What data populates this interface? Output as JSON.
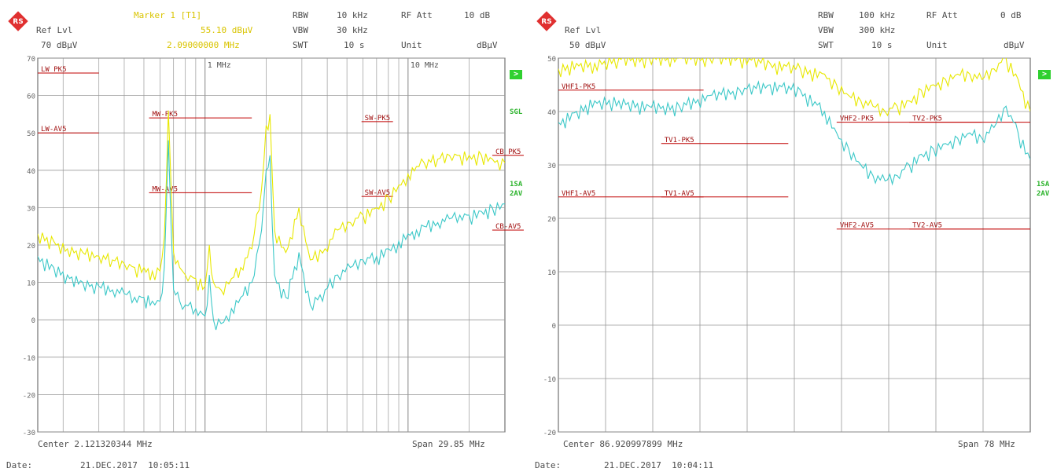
{
  "panels": [
    {
      "header": {
        "ref_lvl_label": "Ref Lvl",
        "ref_lvl_value": "70 dBµV",
        "marker_label": "Marker 1 [T1]",
        "marker_value": "55.10 dBµV",
        "marker_freq": "2.09000000 MHz",
        "rbw_label": "RBW",
        "rbw_value": "10 kHz",
        "vbw_label": "VBW",
        "vbw_value": "30 kHz",
        "swt_label": "SWT",
        "swt_value": "10 s",
        "att_label": "RF Att",
        "att_value": "10 dB",
        "unit_label": "Unit",
        "unit_value": "dBµV"
      },
      "footer": {
        "center": "Center 2.121320344 MHz",
        "span": "Span 29.85 MHz",
        "date_label": "Date:",
        "date_value": "21.DEC.2017  10:05:11"
      },
      "side_labels": [
        "SGL",
        "1SA",
        "2AV"
      ],
      "badge": ">"
    },
    {
      "header": {
        "ref_lvl_label": "Ref Lvl",
        "ref_lvl_value": "50 dBµV",
        "rbw_label": "RBW",
        "rbw_value": "100 kHz",
        "vbw_label": "VBW",
        "vbw_value": "300 kHz",
        "swt_label": "SWT",
        "swt_value": "10 s",
        "att_label": "RF Att",
        "att_value": "0 dB",
        "unit_label": "Unit",
        "unit_value": "dBµV"
      },
      "footer": {
        "center": "Center 86.920997899 MHz",
        "span": "Span 78 MHz",
        "date_label": "Date:",
        "date_value": "21.DEC.2017  10:04:11"
      },
      "side_labels": [
        "1SA",
        "2AV"
      ],
      "badge": ">"
    }
  ],
  "chart_data": [
    {
      "type": "line",
      "x_scale": "log",
      "xlim": [
        0.15,
        30
      ],
      "ylim": [
        -30,
        70
      ],
      "y_ticks": [
        70,
        60,
        50,
        40,
        30,
        20,
        10,
        0,
        -10,
        -20,
        -30
      ],
      "x_tick_labels": [
        "1 MHz",
        "10 MHz"
      ],
      "x_tick_values": [
        1,
        10
      ],
      "grid": true,
      "colors": {
        "peak": "#e8e800",
        "average": "#3cc8c8",
        "limit": "#c00000",
        "grid": "#999999"
      },
      "series": [
        {
          "x": [
            0.15,
            0.18,
            0.21,
            0.25,
            0.3,
            0.35,
            0.4,
            0.45,
            0.5,
            0.55,
            0.6,
            0.63,
            0.66,
            0.7,
            0.75,
            0.8,
            0.9,
            1.0,
            1.05,
            1.1,
            1.2,
            1.35,
            1.5,
            1.7,
            1.9,
            2.0,
            2.09,
            2.2,
            2.5,
            2.9,
            3.3,
            3.9,
            4.5,
            5.2,
            6,
            7,
            8,
            9,
            10,
            11,
            12,
            14,
            16,
            18,
            20,
            23,
            26,
            30
          ],
          "values": [
            23,
            21,
            19,
            18,
            17,
            16,
            15,
            14,
            14,
            13,
            13,
            22,
            56,
            18,
            14,
            12,
            11,
            9,
            20,
            10,
            8,
            11,
            14,
            19,
            35,
            52,
            55,
            24,
            18,
            30,
            16,
            19,
            24,
            26,
            28,
            30,
            33,
            36,
            39,
            41,
            42,
            43,
            44,
            44,
            44,
            44,
            43,
            42
          ]
        },
        {
          "x": [
            0.15,
            0.18,
            0.21,
            0.25,
            0.3,
            0.35,
            0.4,
            0.45,
            0.5,
            0.55,
            0.6,
            0.63,
            0.66,
            0.7,
            0.75,
            0.8,
            0.9,
            1.0,
            1.05,
            1.1,
            1.2,
            1.35,
            1.5,
            1.7,
            1.9,
            2.0,
            2.09,
            2.2,
            2.5,
            2.9,
            3.3,
            3.9,
            4.5,
            5.2,
            6,
            7,
            8,
            9,
            10,
            11,
            12,
            14,
            16,
            18,
            20,
            23,
            26,
            30
          ],
          "values": [
            17,
            14,
            12,
            10,
            9,
            8,
            7,
            6,
            6,
            5,
            5,
            14,
            48,
            8,
            5,
            4,
            3,
            1,
            12,
            0,
            -1,
            3,
            6,
            10,
            24,
            40,
            44,
            12,
            6,
            18,
            4,
            8,
            12,
            14,
            16,
            17,
            19,
            21,
            23,
            24,
            25,
            26,
            27,
            28,
            28,
            29,
            30,
            31
          ]
        }
      ],
      "limit_lines": [
        {
          "label": "LW_PK5",
          "value": 66,
          "x": [
            0.15,
            0.3
          ]
        },
        {
          "label": "LW-AV5",
          "value": 50,
          "x": [
            0.15,
            0.3
          ]
        },
        {
          "label": "MW-PK5",
          "value": 54,
          "x": [
            0.53,
            1.7
          ]
        },
        {
          "label": "MW-AV5",
          "value": 34,
          "x": [
            0.53,
            1.7
          ]
        },
        {
          "label": "SW-PK5",
          "value": 53,
          "x": [
            5.9,
            6.2
          ]
        },
        {
          "label": "SW-AV5",
          "value": 33,
          "x": [
            5.9,
            6.2
          ]
        },
        {
          "label": "CB_PK5",
          "value": 44,
          "x": [
            26,
            28
          ]
        },
        {
          "label": "CB-AV5",
          "value": 24,
          "x": [
            26,
            28
          ]
        }
      ]
    },
    {
      "type": "line",
      "xlim": [
        30,
        108
      ],
      "ylim": [
        -20,
        50
      ],
      "y_ticks": [
        50,
        40,
        30,
        20,
        10,
        0,
        -10,
        -20
      ],
      "grid": true,
      "colors": {
        "peak": "#e8e800",
        "average": "#3cc8c8",
        "limit": "#c00000",
        "grid": "#999999"
      },
      "series": [
        {
          "x": [
            30,
            33,
            36,
            40,
            45,
            50,
            55,
            60,
            65,
            70,
            74,
            76,
            78,
            80,
            82,
            84,
            86,
            88,
            90,
            92,
            94,
            96,
            98,
            100,
            102,
            104,
            106,
            108
          ],
          "values": [
            48,
            49,
            49,
            50,
            50,
            50,
            50,
            50,
            49,
            48,
            47,
            45,
            43,
            42,
            41,
            40,
            41,
            42,
            44,
            45,
            46,
            47,
            47,
            46,
            48,
            50,
            46,
            40
          ]
        },
        {
          "x": [
            30,
            33,
            36,
            40,
            45,
            50,
            55,
            60,
            65,
            70,
            74,
            76,
            78,
            80,
            82,
            84,
            86,
            88,
            90,
            92,
            94,
            96,
            98,
            100,
            102,
            104,
            106,
            108
          ],
          "values": [
            38,
            40,
            42,
            42,
            41,
            41,
            43,
            44,
            45,
            44,
            40,
            36,
            33,
            30,
            28,
            27,
            28,
            30,
            32,
            33,
            34,
            35,
            36,
            35,
            37,
            41,
            36,
            31
          ]
        }
      ],
      "limit_lines": [
        {
          "label": "VHF1-PK5",
          "value": 44,
          "x": [
            30,
            54
          ]
        },
        {
          "label": "VHF1-AV5",
          "value": 24,
          "x": [
            30,
            54
          ]
        },
        {
          "label": "TV1-PK5",
          "value": 34,
          "x": [
            47,
            68
          ]
        },
        {
          "label": "TV1-AV5",
          "value": 24,
          "x": [
            47,
            68
          ]
        },
        {
          "label": "VHF2-PK5",
          "value": 38,
          "x": [
            76,
            108
          ]
        },
        {
          "label": "VHF2-AV5",
          "value": 18,
          "x": [
            76,
            108
          ]
        },
        {
          "label": "TV2-PK5",
          "value": 38,
          "x": [
            88,
            100
          ]
        },
        {
          "label": "TV2-AV5",
          "value": 18,
          "x": [
            88,
            108
          ]
        }
      ]
    }
  ]
}
